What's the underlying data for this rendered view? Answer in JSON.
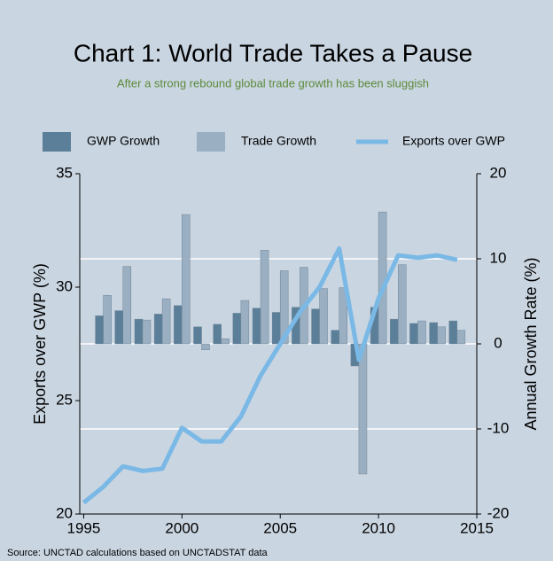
{
  "chart_data": {
    "type": "bar_line",
    "title": "Chart 1: World Trade Takes a Pause",
    "subtitle": "After a strong rebound global trade growth has been sluggish",
    "source": "Source: UNCTAD calculations based on UNCTADSTAT data",
    "ylabel": "Exports over GWP (%)",
    "y2label": "Annual Growth Rate (%)",
    "x": [
      1995,
      1996,
      1997,
      1998,
      1999,
      2000,
      2001,
      2002,
      2003,
      2004,
      2005,
      2006,
      2007,
      2008,
      2009,
      2010,
      2011,
      2012,
      2013,
      2014
    ],
    "series": [
      {
        "name": "GWP Growth",
        "type": "bar",
        "axis": "y2",
        "color": "#5b7f99",
        "values": [
          null,
          3.3,
          3.9,
          2.9,
          3.5,
          4.5,
          2.0,
          2.3,
          3.6,
          4.2,
          3.7,
          4.3,
          4.1,
          1.6,
          -2.6,
          4.3,
          2.9,
          2.4,
          2.5,
          2.7
        ]
      },
      {
        "name": "Trade Growth",
        "type": "bar",
        "axis": "y2",
        "color": "#9aafc2",
        "values": [
          null,
          5.7,
          9.1,
          2.8,
          5.3,
          15.2,
          -0.7,
          0.6,
          5.1,
          11.0,
          8.6,
          9.0,
          6.5,
          6.6,
          -15.3,
          15.5,
          9.3,
          2.7,
          2.0,
          1.6
        ]
      },
      {
        "name": "Exports over GWP",
        "type": "line",
        "axis": "y",
        "color": "#7ab8e6",
        "values": [
          20.5,
          21.2,
          22.1,
          21.9,
          22.0,
          23.8,
          23.2,
          23.2,
          24.3,
          26.1,
          27.5,
          28.9,
          30.0,
          31.7,
          26.8,
          29.5,
          31.4,
          31.3,
          31.4,
          31.2
        ]
      }
    ],
    "xlim": [
      1994.8,
      2015
    ],
    "xticks": [
      1995,
      2000,
      2005,
      2010,
      2015
    ],
    "ylim": [
      20,
      35
    ],
    "yticks": [
      20,
      25,
      30,
      35
    ],
    "y2lim": [
      -20,
      20
    ],
    "y2ticks": [
      -20,
      -10,
      0,
      10,
      20
    ],
    "grid": true
  }
}
